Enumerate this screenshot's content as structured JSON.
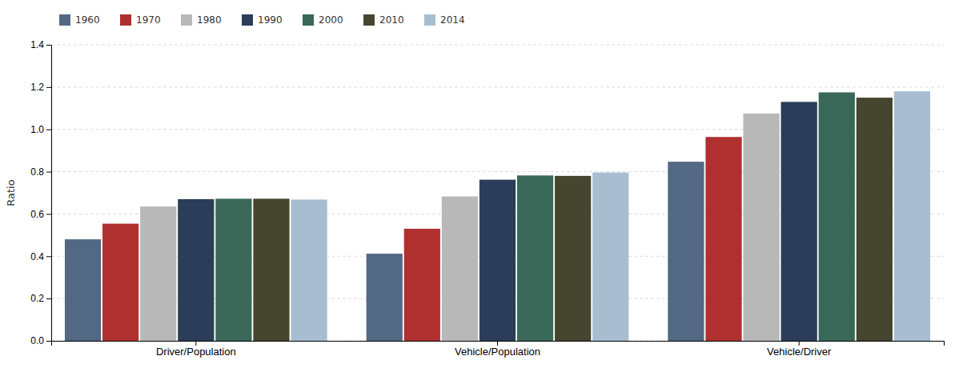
{
  "chart_data": {
    "type": "bar",
    "categories": [
      "Driver/Population",
      "Vehicle/Population",
      "Vehicle/Driver"
    ],
    "series": [
      {
        "name": "1960",
        "color": "#536882",
        "values": [
          0.48,
          0.412,
          0.847
        ]
      },
      {
        "name": "1970",
        "color": "#b03030",
        "values": [
          0.554,
          0.53,
          0.964
        ]
      },
      {
        "name": "1980",
        "color": "#b8b8b8",
        "values": [
          0.635,
          0.683,
          1.075
        ]
      },
      {
        "name": "1990",
        "color": "#2b3d58",
        "values": [
          0.67,
          0.762,
          1.13
        ]
      },
      {
        "name": "2000",
        "color": "#3a6858",
        "values": [
          0.672,
          0.782,
          1.175
        ]
      },
      {
        "name": "2010",
        "color": "#454530",
        "values": [
          0.672,
          0.78,
          1.15
        ]
      },
      {
        "name": "2014",
        "color": "#a8bdd0",
        "values": [
          0.668,
          0.796,
          1.18
        ]
      }
    ],
    "ylabel": "Ratio",
    "ylim": [
      0,
      1.4
    ],
    "yticks": [
      {
        "value": 0,
        "label": "0.0"
      },
      0.2,
      0.4,
      0.6,
      0.8,
      {
        "value": 1,
        "label": "1.0"
      },
      1.2,
      1.4
    ],
    "grid": true,
    "legend": "upper left"
  }
}
